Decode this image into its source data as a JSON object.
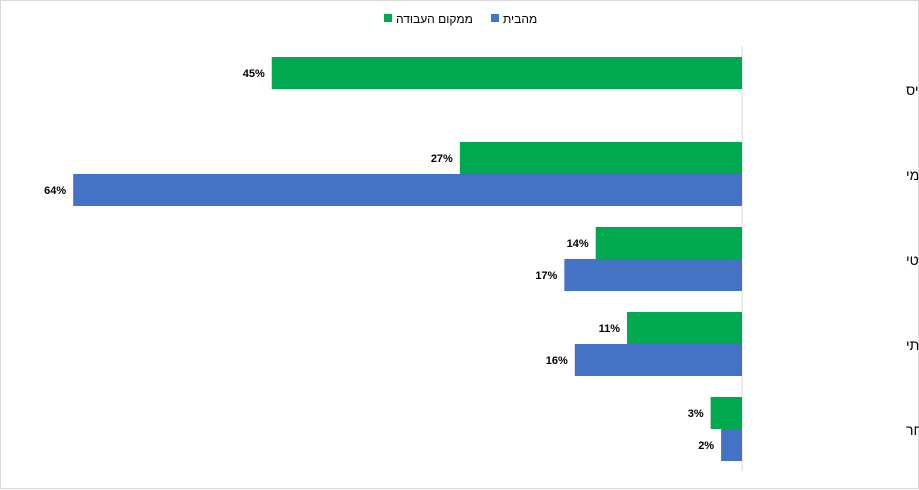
{
  "chart_data": {
    "type": "bar",
    "orientation": "horizontal",
    "categories": [
      "באמצעות כרטיס",
      "דיווח עצמי",
      "מעקב אוטומטי",
      "אין מעקב אחרי שעות עבודתי",
      "אחר"
    ],
    "series": [
      {
        "name": "ממקום העבודה",
        "color": "#00a94f",
        "values": [
          45,
          27,
          14,
          11,
          3
        ]
      },
      {
        "name": "מהבית",
        "color": "#4472c4",
        "values": [
          null,
          64,
          17,
          16,
          2
        ]
      }
    ],
    "value_suffix": "%",
    "xlim": [
      0,
      64
    ],
    "grid": false,
    "legend_position": "top-center"
  }
}
